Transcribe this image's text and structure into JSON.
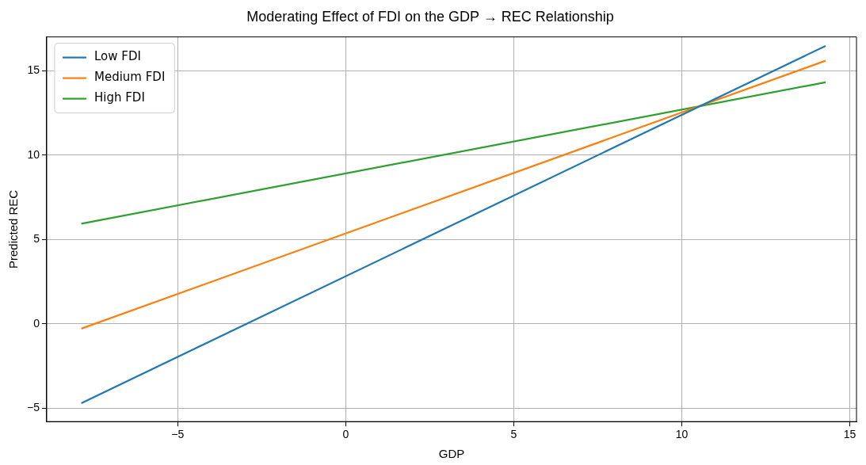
{
  "chart_data": {
    "type": "line",
    "title": "Moderating Effect of FDI on the GDP → REC Relationship",
    "xlabel": "GDP",
    "ylabel": "Predicted REC",
    "x": [
      -7.87,
      14.28
    ],
    "series": [
      {
        "name": "Low FDI",
        "color": "#1f77b4",
        "values": [
          -4.71,
          16.47
        ]
      },
      {
        "name": "Medium FDI",
        "color": "#ff7f0e",
        "values": [
          -0.29,
          15.59
        ]
      },
      {
        "name": "High FDI",
        "color": "#2ca02c",
        "values": [
          5.93,
          14.31
        ]
      }
    ],
    "xlim": [
      -8.9,
      15.2
    ],
    "xticks": [
      -5,
      0,
      5,
      10,
      15
    ],
    "ylim": [
      -5.8,
      17.0
    ],
    "yticks": [
      -5,
      0,
      5,
      10,
      15
    ],
    "grid": true,
    "legend": "top left",
    "marker": "none",
    "line_style": "solid"
  }
}
